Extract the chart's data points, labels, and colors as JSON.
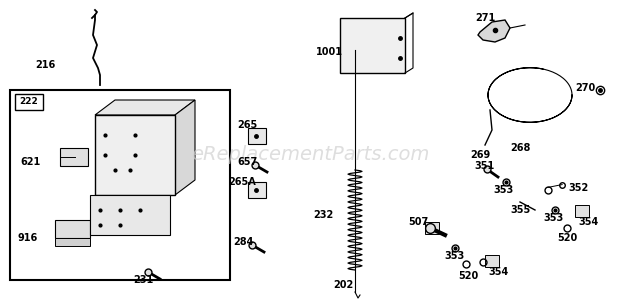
{
  "bg_color": "#ffffff",
  "watermark": "eReplacementParts.com",
  "watermark_color": "#d0d0d0",
  "lw": 1.0
}
